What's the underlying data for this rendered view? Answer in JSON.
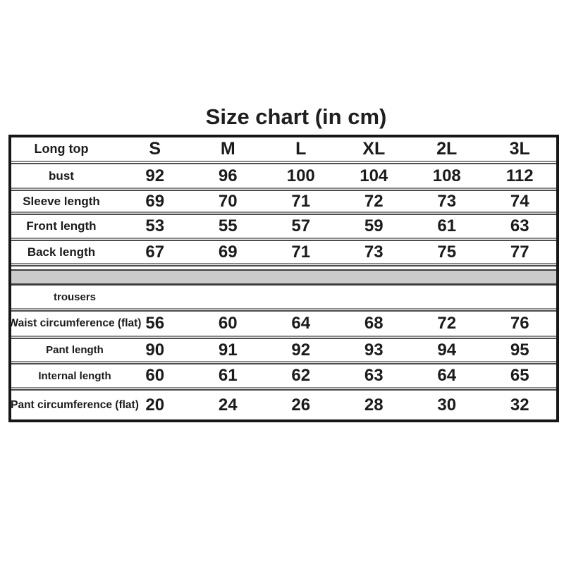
{
  "title": "Size chart (in cm)",
  "table": {
    "header": {
      "label": "Long top",
      "sizes": [
        "S",
        "M",
        "L",
        "XL",
        "2L",
        "3L"
      ]
    },
    "top_rows": [
      {
        "label": "bust",
        "values": [
          "92",
          "96",
          "100",
          "104",
          "108",
          "112"
        ]
      },
      {
        "label": "Sleeve length",
        "values": [
          "69",
          "70",
          "71",
          "72",
          "73",
          "74"
        ]
      },
      {
        "label": "Front length",
        "values": [
          "53",
          "55",
          "57",
          "59",
          "61",
          "63"
        ]
      },
      {
        "label": "Back length",
        "values": [
          "67",
          "69",
          "71",
          "73",
          "75",
          "77"
        ]
      }
    ],
    "section2_label": "trousers",
    "bottom_rows": [
      {
        "label": "Waist circumference (flat)",
        "values": [
          "56",
          "60",
          "64",
          "68",
          "72",
          "76"
        ]
      },
      {
        "label": "Pant length",
        "values": [
          "90",
          "91",
          "92",
          "93",
          "94",
          "95"
        ]
      },
      {
        "label": "Internal length",
        "values": [
          "60",
          "61",
          "62",
          "63",
          "64",
          "65"
        ]
      },
      {
        "label": "Pant circumference (flat)",
        "values": [
          "20",
          "24",
          "26",
          "28",
          "30",
          "32"
        ]
      }
    ]
  },
  "colors": {
    "background": "#ffffff",
    "text": "#1b1b1b",
    "table_border": "#161616",
    "rule_light": "#8a8a8a",
    "rule_dark": "#4c4c4c",
    "band_fill": "#cbcbcb",
    "band_border": "#3d3d3d"
  },
  "chart_data": {
    "type": "table",
    "title": "Size chart (in cm)",
    "columns": [
      "",
      "S",
      "M",
      "L",
      "XL",
      "2L",
      "3L"
    ],
    "sections": [
      {
        "name": "Long top",
        "rows": [
          [
            "bust",
            92,
            96,
            100,
            104,
            108,
            112
          ],
          [
            "Sleeve length",
            69,
            70,
            71,
            72,
            73,
            74
          ],
          [
            "Front length",
            53,
            55,
            57,
            59,
            61,
            63
          ],
          [
            "Back length",
            67,
            69,
            71,
            73,
            75,
            77
          ]
        ]
      },
      {
        "name": "trousers",
        "rows": [
          [
            "Waist circumference (flat)",
            56,
            60,
            64,
            68,
            72,
            76
          ],
          [
            "Pant length",
            90,
            91,
            92,
            93,
            94,
            95
          ],
          [
            "Internal length",
            60,
            61,
            62,
            63,
            64,
            65
          ],
          [
            "Pant circumference (flat)",
            20,
            24,
            26,
            28,
            30,
            32
          ]
        ]
      }
    ],
    "layout": {
      "grid": "horizontal-rules-only",
      "section_divider": "gray-band",
      "legend": "none"
    }
  }
}
